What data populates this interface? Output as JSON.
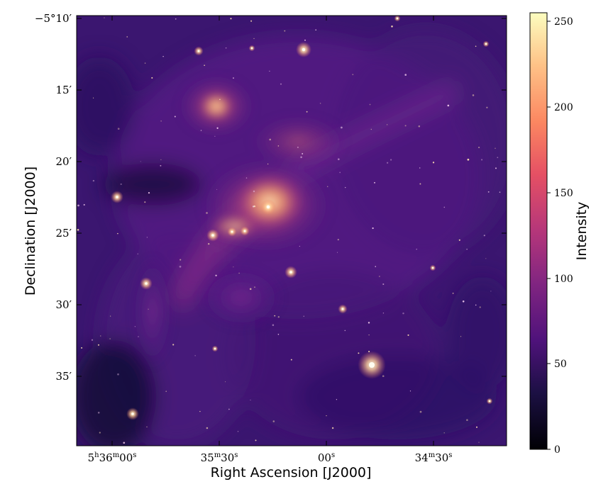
{
  "figure": {
    "xlabel": "Right Ascension [J2000]",
    "ylabel": "Declination [J2000]",
    "x_ticks": [
      {
        "h": "5",
        "hu": "h",
        "m": "36",
        "mu": "m",
        "s": "00",
        "su": "s"
      },
      {
        "m": "35",
        "mu": "m",
        "s": "30",
        "su": "s"
      },
      {
        "s": "00",
        "su": "s"
      },
      {
        "m": "34",
        "mu": "m",
        "s": "30",
        "su": "s"
      }
    ],
    "y_ticks": [
      {
        "label": "−5°10′"
      },
      {
        "label": "15′"
      },
      {
        "label": "20′"
      },
      {
        "label": "25′"
      },
      {
        "label": "30′"
      },
      {
        "label": "35′"
      }
    ]
  },
  "colorbar": {
    "label": "Intensity",
    "colormap": "magma",
    "range": [
      0,
      255
    ],
    "ticks": [
      "0",
      "50",
      "100",
      "150",
      "200",
      "250"
    ]
  },
  "nebula": {
    "colors": {
      "background": "#140a38",
      "deep": "#2c1262",
      "mid": "#5e1f8a",
      "warm": "#b03d78",
      "hot": "#f5a06a",
      "core": "#fde3b4"
    }
  }
}
